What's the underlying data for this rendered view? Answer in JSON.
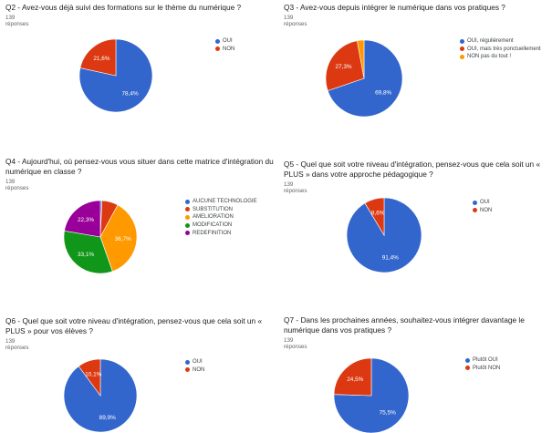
{
  "response_count": "139 réponses",
  "chart_data": [
    {
      "id": "q2",
      "type": "pie",
      "title": "Q2 - Avez-vous déjà suivi des formations sur le thème du numérique ?",
      "subtitle": "139 réponses",
      "labels": [
        "OUI",
        "NON"
      ],
      "values": [
        78.4,
        21.6
      ],
      "value_labels": [
        "78,4%",
        "21,6%"
      ],
      "colors": [
        "#3366cc",
        "#dc3912"
      ],
      "legend_position": "right"
    },
    {
      "id": "q3",
      "type": "pie",
      "title": "Q3 - Avez-vous depuis intégrer le numérique dans vos pratiques ?",
      "subtitle": "139 réponses",
      "labels": [
        "OUI, régulièrement",
        "OUI, mais très ponctuellement",
        "NON pas du tout !"
      ],
      "values": [
        69.8,
        27.3,
        2.9
      ],
      "value_labels": [
        "69,8%",
        "27,3%",
        ""
      ],
      "colors": [
        "#3366cc",
        "#dc3912",
        "#ff9900"
      ],
      "legend_position": "right"
    },
    {
      "id": "q4",
      "type": "pie",
      "title": "Q4 - Aujourd'hui, où pensez-vous vous situer dans cette matrice d'intégration du numérique en classe ?",
      "subtitle": "139 réponses",
      "labels": [
        "AUCUNE TECHNOLOGIE",
        "SUBSTITUTION",
        "AMELIORATION",
        "MODIFICATION",
        "REDEFINITION"
      ],
      "values": [
        0.7,
        7.2,
        36.7,
        33.1,
        22.3
      ],
      "value_labels": [
        "",
        "",
        "36,7%",
        "33,1%",
        "22,3%"
      ],
      "colors": [
        "#3366cc",
        "#dc3912",
        "#ff9900",
        "#109618",
        "#990099"
      ],
      "legend_position": "right"
    },
    {
      "id": "q5",
      "type": "pie",
      "title": "Q5 - Quel que soit votre niveau d'intégration, pensez-vous que cela soit un « PLUS » dans votre approche pédagogique ?",
      "subtitle": "139 réponses",
      "labels": [
        "OUI",
        "NON"
      ],
      "values": [
        91.4,
        8.6
      ],
      "value_labels": [
        "91,4%",
        "8,6%"
      ],
      "colors": [
        "#3366cc",
        "#dc3912"
      ],
      "legend_position": "right"
    },
    {
      "id": "q6",
      "type": "pie",
      "title": "Q6 - Quel que soit votre niveau d'intégration, pensez-vous que cela soit un « PLUS » pour vos élèves ?",
      "subtitle": "139 réponses",
      "labels": [
        "OUI",
        "NON"
      ],
      "values": [
        89.9,
        10.1
      ],
      "value_labels": [
        "89,9%",
        "10,1%"
      ],
      "colors": [
        "#3366cc",
        "#dc3912"
      ],
      "legend_position": "right"
    },
    {
      "id": "q7",
      "type": "pie",
      "title": "Q7 - Dans les prochaines années, souhaitez-vous intégrer davantage le numérique dans vos pratiques ?",
      "subtitle": "139 réponses",
      "labels": [
        "Plutôt OUI",
        "Plutôt NON"
      ],
      "values": [
        75.5,
        24.5
      ],
      "value_labels": [
        "75,5%",
        "24,5%"
      ],
      "colors": [
        "#3366cc",
        "#dc3912"
      ],
      "legend_position": "right"
    }
  ]
}
